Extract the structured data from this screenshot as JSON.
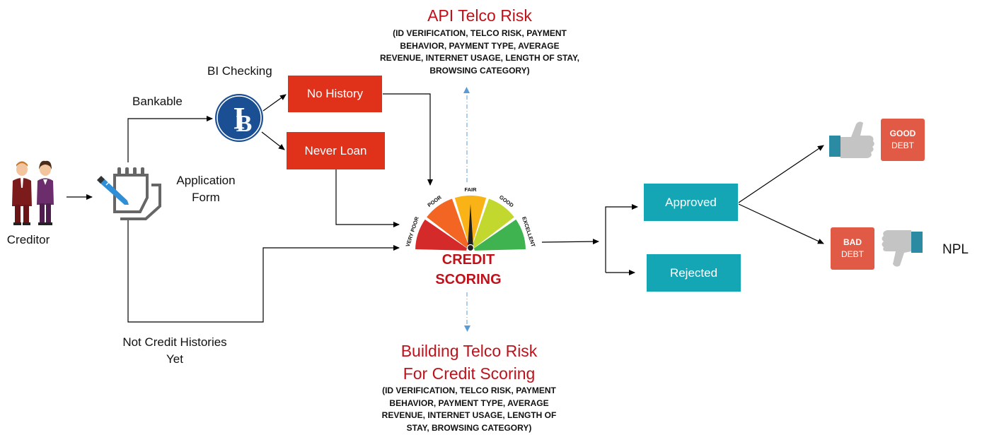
{
  "labels": {
    "creditor": "Creditor",
    "bankable": "Bankable",
    "bi_checking": "BI Checking",
    "application_form_1": "Application",
    "application_form_2": "Form",
    "not_credit_1": "Not Credit Histories",
    "not_credit_2": "Yet",
    "npl": "NPL"
  },
  "boxes": {
    "no_history": "No History",
    "never_loan": "Never Loan",
    "approved": "Approved",
    "rejected": "Rejected"
  },
  "api_telco": {
    "title": "API Telco Risk",
    "lines": [
      "(ID VERIFICATION, TELCO RISK, PAYMENT",
      "BEHAVIOR, PAYMENT TYPE, AVERAGE",
      "REVENUE, INTERNET USAGE, LENGTH OF STAY,",
      "BROWSING CATEGORY)"
    ]
  },
  "building_telco": {
    "title_1": "Building Telco Risk",
    "title_2": "For Credit Scoring",
    "lines": [
      "(ID VERIFICATION, TELCO RISK, PAYMENT",
      "BEHAVIOR, PAYMENT TYPE, AVERAGE",
      "REVENUE, INTERNET USAGE, LENGTH OF",
      "STAY, BROWSING CATEGORY)"
    ]
  },
  "gauge": {
    "segments": [
      "VERY POOR",
      "POOR",
      "FAIR",
      "GOOD",
      "EXCELLENT"
    ],
    "title_1": "CREDIT",
    "title_2": "SCORING"
  },
  "badges": {
    "good_1": "GOOD",
    "good_2": "DEBT",
    "bad_1": "BAD",
    "bad_2": "DEBT"
  },
  "colors": {
    "red_box": "#e0311a",
    "teal_box": "#14a6b4",
    "title_red": "#c0111a",
    "gauge": [
      "#d42a2a",
      "#f26522",
      "#f9b316",
      "#c3d82e",
      "#3fb34f"
    ]
  }
}
